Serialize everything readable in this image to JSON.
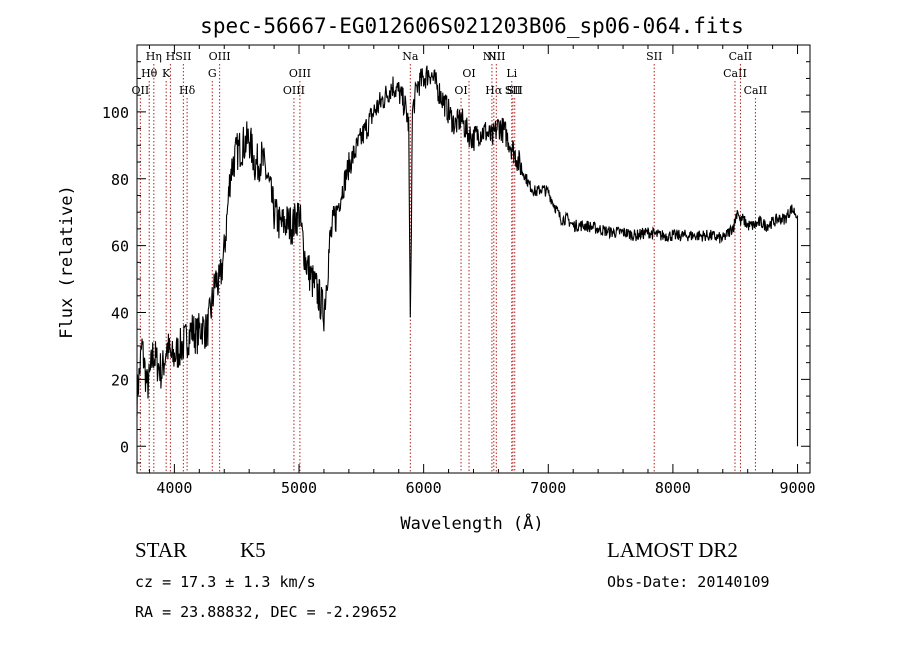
{
  "chart_data": {
    "type": "line",
    "title": "spec-56667-EG012606S021203B06_sp06-064.fits",
    "xlabel": "Wavelength (Å)",
    "ylabel": "Flux (relative)",
    "xlim": [
      3700,
      9100
    ],
    "ylim": [
      -8,
      120
    ],
    "x_ticks": [
      4000,
      5000,
      6000,
      7000,
      8000,
      9000
    ],
    "y_ticks": [
      0,
      20,
      40,
      60,
      80,
      100
    ],
    "grid": false,
    "series": [
      {
        "x": [
          3700,
          3720,
          3740,
          3760,
          3780,
          3800,
          3830,
          3860,
          3900,
          3940,
          3980,
          4020,
          4060,
          4100,
          4140,
          4180,
          4220,
          4260,
          4300,
          4330,
          4360,
          4400,
          4450,
          4500,
          4550,
          4600,
          4650,
          4700,
          4750,
          4800,
          4850,
          4900,
          4950,
          5000,
          5050,
          5100,
          5150,
          5200,
          5250,
          5300,
          5400,
          5500,
          5600,
          5700,
          5750,
          5800,
          5850,
          5880,
          5893,
          5910,
          5950,
          6000,
          6050,
          6100,
          6150,
          6200,
          6250,
          6300,
          6350,
          6400,
          6450,
          6500,
          6550,
          6600,
          6650,
          6700,
          6750,
          6800,
          6850,
          6900,
          6950,
          7000,
          7050,
          7100,
          7150,
          7200,
          7300,
          7400,
          7500,
          7600,
          7700,
          7800,
          7900,
          8000,
          8100,
          8200,
          8300,
          8400,
          8450,
          8490,
          8520,
          8540,
          8560,
          8600,
          8650,
          8700,
          8750,
          8800,
          8850,
          8900,
          8950,
          8980,
          9000
        ],
        "y": [
          15,
          22,
          30,
          24,
          18,
          20,
          28,
          25,
          22,
          30,
          26,
          28,
          30,
          32,
          35,
          33,
          36,
          34,
          42,
          50,
          48,
          58,
          82,
          88,
          90,
          92,
          84,
          86,
          80,
          70,
          66,
          67,
          66,
          70,
          56,
          50,
          46,
          40,
          62,
          70,
          84,
          92,
          100,
          105,
          108,
          106,
          102,
          96,
          35,
          100,
          108,
          110,
          112,
          108,
          104,
          100,
          96,
          98,
          94,
          92,
          94,
          94,
          92,
          96,
          94,
          90,
          86,
          82,
          78,
          76,
          77,
          76,
          72,
          68,
          68,
          66,
          66,
          65,
          64,
          64,
          63,
          64,
          63,
          63,
          63,
          63,
          63,
          62,
          64,
          66,
          71,
          67,
          68,
          66,
          66,
          67,
          66,
          67,
          68,
          68,
          71,
          70,
          69
        ]
      }
    ],
    "lines": [
      {
        "x": 3727,
        "label": "OII",
        "row": 3
      },
      {
        "x": 3798,
        "label": "Hθ",
        "row": 2
      },
      {
        "x": 3835,
        "label": "Hη",
        "row": 1
      },
      {
        "x": 3934,
        "label": "K",
        "row": 2
      },
      {
        "x": 3968,
        "label": "H",
        "row": 1
      },
      {
        "x": 4072,
        "label": "SII",
        "row": 1
      },
      {
        "x": 4102,
        "label": "Hδ",
        "row": 3
      },
      {
        "x": 4304,
        "label": "G",
        "row": 2
      },
      {
        "x": 4363,
        "label": "OIII",
        "row": 1
      },
      {
        "x": 4959,
        "label": "OIII",
        "row": 3
      },
      {
        "x": 5007,
        "label": "OIII",
        "row": 2
      },
      {
        "x": 5893,
        "label": "Na",
        "row": 1
      },
      {
        "x": 6300,
        "label": "OI",
        "row": 3
      },
      {
        "x": 6364,
        "label": "OI",
        "row": 2
      },
      {
        "x": 6548,
        "label": "NII",
        "row": 1
      },
      {
        "x": 6563,
        "label": "Hα",
        "row": 3
      },
      {
        "x": 6583,
        "label": "NII",
        "row": 1
      },
      {
        "x": 6707,
        "label": "Li",
        "row": 2
      },
      {
        "x": 6716,
        "label": "SII",
        "row": 3
      },
      {
        "x": 6731,
        "label": "SII",
        "row": 3
      },
      {
        "x": 7850,
        "label": "SII",
        "row": 1
      },
      {
        "x": 8498,
        "label": "CaII",
        "row": 2
      },
      {
        "x": 8542,
        "label": "CaII",
        "row": 1
      },
      {
        "x": 8662,
        "label": "CaII",
        "row": 3
      }
    ],
    "colors": {
      "spectrum": "#000000",
      "lines": "#b22222",
      "axes": "#000000"
    }
  },
  "info": {
    "class": "STAR",
    "subclass": "K5",
    "survey": "LAMOST DR2",
    "cz": "cz = 17.3 ± 1.3 km/s",
    "obs_date": "Obs-Date: 20140109",
    "coords": "RA =  23.88832, DEC =  -2.29652"
  }
}
